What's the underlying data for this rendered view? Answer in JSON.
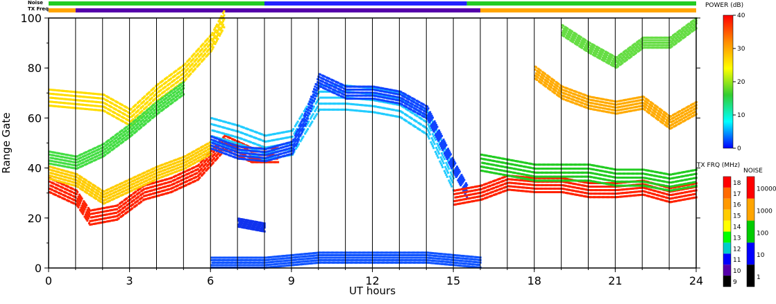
{
  "header": {
    "noise_label": "Noise",
    "txfreq_label": "TX Freq"
  },
  "colorbars": {
    "power_title": "POWER (dB)",
    "power_ticks": [
      "40",
      "30",
      "20",
      "10",
      "0"
    ],
    "txfreq_title": "TX FRQ (MHz)",
    "txfreq_ticks": [
      "18",
      "17",
      "16",
      "15",
      "14",
      "13",
      "12",
      "11",
      "10",
      "9"
    ],
    "noise_title": "NOISE",
    "noise_ticks": [
      "10000",
      "1000",
      "100",
      "10",
      "1"
    ],
    "power_colors": [
      "#ff0000",
      "#ff8c00",
      "#ffff00",
      "#32cd32",
      "#00ffff",
      "#0000ff"
    ],
    "txfreq_colors": [
      "#ff0000",
      "#ff6a00",
      "#ff9900",
      "#ffcc00",
      "#ffff00",
      "#00ff00",
      "#00cccc",
      "#0000ff",
      "#5500aa",
      "#000000"
    ],
    "noise_colors": [
      "#ff0000",
      "#ffa500",
      "#00cc00",
      "#0000ff",
      "#000000"
    ]
  },
  "chart_data": {
    "type": "heatmap",
    "title": "",
    "xlabel": "UT hours",
    "ylabel": "Range Gate",
    "xlim": [
      0,
      24
    ],
    "ylim": [
      0,
      100
    ],
    "xticks": [
      "0",
      "3",
      "6",
      "9",
      "12",
      "15",
      "18",
      "21",
      "24"
    ],
    "yticks": [
      "0",
      "20",
      "40",
      "60",
      "80",
      "100"
    ],
    "hour_lines": [
      1,
      2,
      3,
      4,
      5,
      6,
      7,
      8,
      9,
      10,
      11,
      12,
      13,
      14,
      15,
      16,
      17,
      18,
      19,
      20,
      21,
      22,
      23
    ],
    "txfreq_bar": [
      {
        "from": 0,
        "to": 1,
        "color": "#ffa500"
      },
      {
        "from": 1,
        "to": 16,
        "color": "#5500aa"
      },
      {
        "from": 16,
        "to": 24,
        "color": "#ffa500"
      }
    ],
    "noise_bar": [
      {
        "from": 0,
        "to": 8,
        "color": "#22cc22"
      },
      {
        "from": 8,
        "to": 15.5,
        "color": "#2222ff"
      },
      {
        "from": 15.5,
        "to": 24,
        "color": "#22cc22"
      }
    ],
    "echo_bands": [
      {
        "name": "",
        "points": [
          [
            0,
            33
          ],
          [
            1,
            28
          ],
          [
            1.5,
            20
          ],
          [
            2.5,
            22
          ],
          [
            3.5,
            30
          ],
          [
            4.5,
            33
          ],
          [
            5.5,
            38
          ],
          [
            6.5,
            50
          ],
          [
            7.5,
            45
          ],
          [
            8.5,
            45
          ]
        ],
        "width": 7,
        "color": "#ff2200"
      },
      {
        "name": "",
        "points": [
          [
            0,
            38
          ],
          [
            1,
            35
          ],
          [
            2,
            28
          ],
          [
            3,
            33
          ],
          [
            4,
            38
          ],
          [
            5,
            42
          ],
          [
            6,
            48
          ]
        ],
        "width": 6,
        "color": "#ffcc00"
      },
      {
        "name": "",
        "points": [
          [
            0,
            68
          ],
          [
            1,
            67
          ],
          [
            2,
            66
          ],
          [
            3,
            60
          ],
          [
            4,
            70
          ],
          [
            5,
            78
          ],
          [
            6,
            90
          ],
          [
            6.5,
            100
          ]
        ],
        "width": 8,
        "color": "#ffdd00"
      },
      {
        "name": "",
        "points": [
          [
            0,
            44
          ],
          [
            1,
            42
          ],
          [
            2,
            47
          ],
          [
            3,
            55
          ],
          [
            4,
            64
          ],
          [
            5,
            72
          ]
        ],
        "width": 6,
        "color": "#44dd44"
      },
      {
        "name": "",
        "points": [
          [
            6,
            55
          ],
          [
            7,
            52
          ],
          [
            8,
            48
          ],
          [
            9,
            50
          ],
          [
            10,
            68
          ],
          [
            11,
            68
          ],
          [
            12,
            67
          ],
          [
            13,
            65
          ],
          [
            14,
            58
          ],
          [
            15,
            35
          ]
        ],
        "width": 12,
        "color": "#22ccff"
      },
      {
        "name": "",
        "points": [
          [
            6,
            50
          ],
          [
            7,
            46
          ],
          [
            8,
            45
          ],
          [
            9,
            48
          ],
          [
            9.5,
            60
          ],
          [
            10,
            75
          ],
          [
            11,
            70
          ],
          [
            12,
            70
          ],
          [
            13,
            68
          ],
          [
            14,
            62
          ],
          [
            15,
            40
          ],
          [
            15.5,
            30
          ]
        ],
        "width": 6,
        "color": "#1144ff"
      },
      {
        "name": "",
        "points": [
          [
            15,
            28
          ],
          [
            16,
            30
          ],
          [
            17,
            34
          ],
          [
            18,
            33
          ],
          [
            19,
            33
          ],
          [
            20,
            31
          ],
          [
            21,
            31
          ],
          [
            22,
            32
          ],
          [
            23,
            29
          ],
          [
            24,
            31
          ]
        ],
        "width": 7,
        "color": "#ff2200"
      },
      {
        "name": "",
        "points": [
          [
            16,
            42
          ],
          [
            17,
            40
          ],
          [
            18,
            38
          ],
          [
            19,
            38
          ],
          [
            20,
            38
          ],
          [
            21,
            36
          ],
          [
            22,
            36
          ],
          [
            23,
            34
          ],
          [
            24,
            36
          ]
        ],
        "width": 8,
        "color": "#22cc22"
      },
      {
        "name": "",
        "points": [
          [
            18,
            78
          ],
          [
            19,
            70
          ],
          [
            20,
            66
          ],
          [
            21,
            64
          ],
          [
            22,
            66
          ],
          [
            23,
            58
          ],
          [
            24,
            64
          ]
        ],
        "width": 6,
        "color": "#ffaa00"
      },
      {
        "name": "",
        "points": [
          [
            19,
            95
          ],
          [
            20,
            88
          ],
          [
            21,
            82
          ],
          [
            22,
            90
          ],
          [
            23,
            90
          ],
          [
            24,
            98
          ]
        ],
        "width": 5,
        "color": "#66dd44"
      },
      {
        "name": "",
        "points": [
          [
            6,
            2
          ],
          [
            8,
            2
          ],
          [
            9,
            3
          ],
          [
            10,
            4
          ],
          [
            11,
            4
          ],
          [
            12,
            4
          ],
          [
            13,
            4
          ],
          [
            14,
            4
          ],
          [
            15,
            3
          ],
          [
            16,
            2
          ]
        ],
        "width": 5,
        "color": "#1155ff"
      },
      {
        "name": "",
        "points": [
          [
            7,
            18
          ],
          [
            7.5,
            17
          ],
          [
            8,
            16
          ]
        ],
        "width": 4,
        "color": "#1133ee"
      }
    ]
  }
}
